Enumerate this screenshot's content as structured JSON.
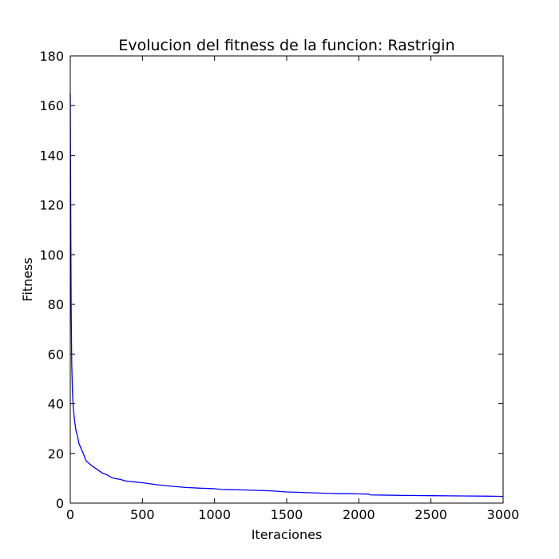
{
  "chart_data": {
    "type": "line",
    "title": "Evolucion del fitness de la funcion: Rastrigin",
    "xlabel": "Iteraciones",
    "ylabel": "Fitness",
    "xlim": [
      0,
      3000
    ],
    "ylim": [
      0,
      180
    ],
    "xticks": [
      0,
      500,
      1000,
      1500,
      2000,
      2500,
      3000
    ],
    "yticks": [
      0,
      20,
      40,
      60,
      80,
      100,
      120,
      140,
      160,
      180
    ],
    "grid": false,
    "legend": "none",
    "series": [
      {
        "color": "#0000ff",
        "x": [
          0,
          3,
          6,
          10,
          15,
          20,
          30,
          40,
          50,
          60,
          75,
          90,
          110,
          130,
          150,
          175,
          200,
          225,
          250,
          280,
          300,
          350,
          375,
          400,
          450,
          500,
          550,
          600,
          700,
          800,
          900,
          1000,
          1050,
          1100,
          1200,
          1300,
          1400,
          1450,
          1500,
          1600,
          1700,
          1800,
          1850,
          1900,
          2000,
          2070,
          2080,
          2200,
          2300,
          2500,
          2700,
          2900,
          3000
        ],
        "y": [
          165,
          120,
          80,
          56,
          45,
          39,
          33,
          29,
          27,
          24,
          22,
          20,
          17,
          16,
          15,
          14,
          13,
          12,
          11.5,
          10.5,
          10,
          9.5,
          9,
          8.8,
          8.5,
          8.2,
          7.8,
          7.4,
          6.8,
          6.3,
          6.0,
          5.8,
          5.5,
          5.4,
          5.3,
          5.1,
          4.9,
          4.7,
          4.5,
          4.3,
          4.1,
          3.9,
          3.8,
          3.8,
          3.7,
          3.6,
          3.3,
          3.2,
          3.1,
          3.0,
          2.9,
          2.8,
          2.7
        ]
      }
    ]
  }
}
